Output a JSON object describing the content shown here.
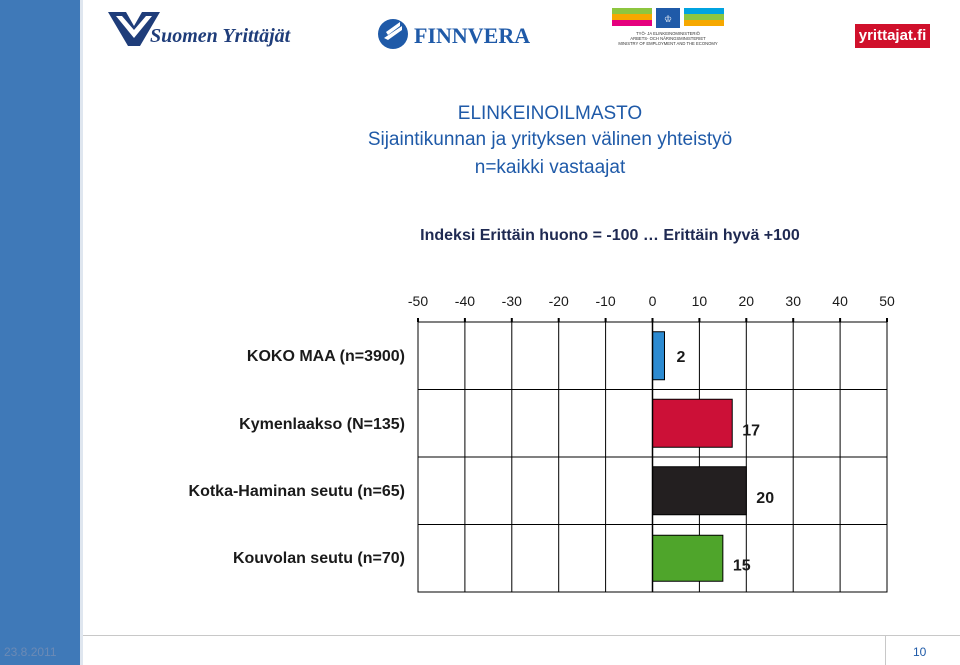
{
  "header": {
    "logo_suomen_yrittajat": "Suomen Yrittäjät",
    "logo_finnvera": "FINNVERA",
    "logo_ministry_lines": [
      "TYÖ- JA ELINKEINOMINISTERIÖ",
      "ARBETS- OCH NÄRINGSMINISTERIET",
      "MINISTRY OF EMPLOYMENT AND THE ECONOMY"
    ],
    "logo_yrittajat_fi": "yrittajat.fi"
  },
  "slide": {
    "title_line1": "ELINKEINOILMASTO",
    "title_line2": "Sijaintikunnan ja yrityksen välinen yhteistyö",
    "title_line3": "n=kaikki vastaajat",
    "subtitle": "Indeksi Erittäin huono = -100 … Erittäin hyvä +100"
  },
  "chart_data": {
    "type": "bar",
    "orientation": "horizontal",
    "categories": [
      "KOKO MAA (n=3900)",
      "Kymenlaakso (N=135)",
      "Kotka-Haminan seutu (n=65)",
      "Kouvolan seutu (n=70)"
    ],
    "values": [
      2,
      17,
      20,
      15
    ],
    "value_labels": [
      "2",
      "17",
      "20",
      "15"
    ],
    "colors": [
      "#2d8bd1",
      "#cc1037",
      "#231f20",
      "#4fa52b"
    ],
    "xlim": [
      -50,
      50
    ],
    "xticks": [
      "-50",
      "-40",
      "-30",
      "-20",
      "-10",
      "0",
      "10",
      "20",
      "30",
      "40",
      "50"
    ],
    "grid": true,
    "axis_position": "top"
  },
  "footer": {
    "date": "23.8.2011",
    "page": "10"
  }
}
